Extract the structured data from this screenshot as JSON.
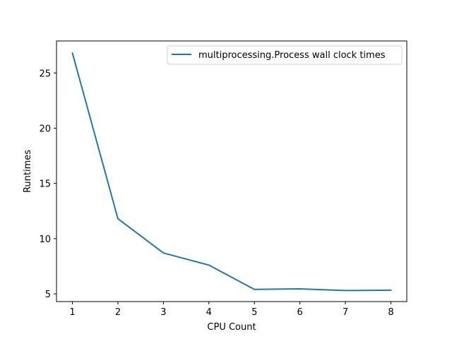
{
  "chart_data": {
    "type": "line",
    "xlabel": "CPU Count",
    "ylabel": "Runtimes",
    "x": [
      1,
      2,
      3,
      4,
      5,
      6,
      7,
      8
    ],
    "series": [
      {
        "name": "multiprocessing.Process wall clock times",
        "values": [
          26.8,
          11.8,
          8.7,
          7.6,
          5.4,
          5.45,
          5.3,
          5.33
        ],
        "color": "#1f77b4"
      }
    ],
    "xticks": [
      1,
      2,
      3,
      4,
      5,
      6,
      7,
      8
    ],
    "yticks": [
      5,
      10,
      15,
      20,
      25
    ],
    "xlim": [
      0.65,
      8.35
    ],
    "ylim": [
      4.3,
      27.9
    ],
    "grid": false,
    "legend_position": "upper right"
  }
}
